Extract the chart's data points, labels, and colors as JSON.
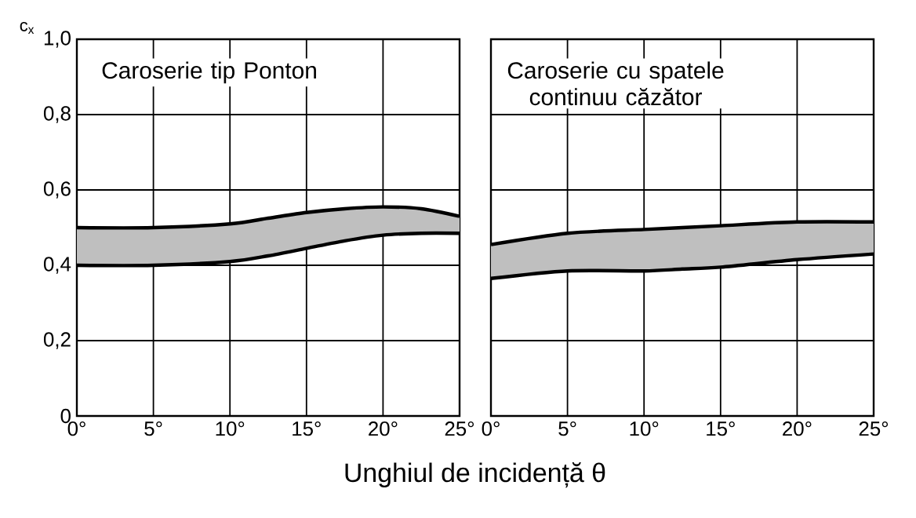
{
  "chart_data": [
    {
      "type": "line",
      "title": "Caroserie tip Ponton",
      "ylabel": "c$_{x}$",
      "xlabel": "Unghiul de incidență θ",
      "grid": true,
      "marker": "none",
      "x": [
        0,
        5,
        10,
        12.5,
        15,
        17.5,
        20,
        22.5,
        25
      ],
      "series": [
        {
          "color": "#000000",
          "values": [
            0.5,
            0.5,
            0.51,
            0.525,
            0.54,
            0.55,
            0.555,
            0.55,
            0.53
          ],
          "lower": [
            0.4,
            0.4,
            0.41,
            0.425,
            0.445,
            0.465,
            0.48,
            0.485,
            0.485
          ],
          "upper": [
            0.5,
            0.5,
            0.51,
            0.525,
            0.54,
            0.55,
            0.555,
            0.55,
            0.53
          ]
        },
        {
          "color": "#000000",
          "values": [
            0.4,
            0.4,
            0.41,
            0.425,
            0.445,
            0.465,
            0.48,
            0.485,
            0.485
          ]
        }
      ],
      "xlim": [
        0,
        25
      ],
      "ylim": [
        0,
        1
      ],
      "xticks": [
        {
          "value": 0,
          "label": "0°"
        },
        {
          "value": 5,
          "label": "5°"
        },
        {
          "value": 10,
          "label": "10°"
        },
        {
          "value": 15,
          "label": "15°"
        },
        {
          "value": 20,
          "label": "20°"
        },
        {
          "value": 25,
          "label": "25°"
        }
      ],
      "yticks": [
        0,
        {
          "value": 0.2,
          "label": "0,2"
        },
        {
          "value": 0.4,
          "label": "0,4"
        },
        {
          "value": 0.6,
          "label": "0,6"
        },
        {
          "value": 0.8,
          "label": "0,8"
        },
        {
          "value": 1,
          "label": "1,0"
        }
      ]
    },
    {
      "type": "line",
      "title": "Caroserie cu spatele continuu căzător",
      "grid": true,
      "marker": "none",
      "tick_labels": "x",
      "x": [
        0,
        5,
        10,
        12.5,
        15,
        20,
        25
      ],
      "series": [
        {
          "color": "#000000",
          "values": [
            0.455,
            0.485,
            0.495,
            0.5,
            0.505,
            0.515,
            0.515
          ],
          "lower": [
            0.365,
            0.385,
            0.385,
            0.39,
            0.395,
            0.415,
            0.43
          ],
          "upper": [
            0.455,
            0.485,
            0.495,
            0.5,
            0.505,
            0.515,
            0.515
          ]
        },
        {
          "color": "#000000",
          "values": [
            0.365,
            0.385,
            0.385,
            0.39,
            0.395,
            0.415,
            0.43
          ]
        }
      ],
      "xlim": [
        0,
        25
      ],
      "ylim": [
        0,
        1
      ],
      "xticks": [
        {
          "value": 0,
          "label": "0°"
        },
        {
          "value": 5,
          "label": "5°"
        },
        {
          "value": 10,
          "label": "10°"
        },
        {
          "value": 15,
          "label": "15°"
        },
        {
          "value": 20,
          "label": "20°"
        },
        {
          "value": 25,
          "label": "25°"
        }
      ],
      "yticks": [
        {
          "value": 0,
          "label": null
        },
        {
          "value": 0.2,
          "label": null
        },
        {
          "value": 0.4,
          "label": null
        },
        {
          "value": 0.6,
          "label": null
        },
        {
          "value": 0.8,
          "label": null
        },
        {
          "value": 1,
          "label": null
        }
      ]
    }
  ]
}
